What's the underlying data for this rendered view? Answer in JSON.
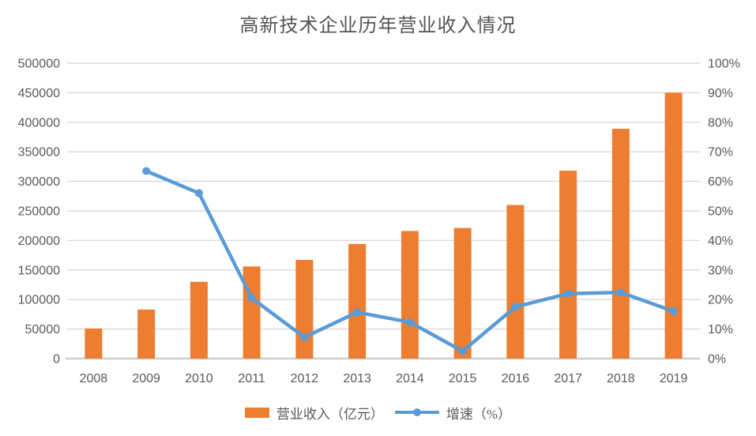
{
  "page": {
    "title": "高新技术企业历年营业收入情况"
  },
  "colors": {
    "bar": "#ED7D31",
    "line": "#5B9BD5",
    "grid": "#D9D9D9",
    "axis_line": "#D0CECE",
    "tick_text": "#595959",
    "title_text": "#555555",
    "background": "#FFFFFF"
  },
  "chart_data": {
    "type": "bar+line combo",
    "title": "高新技术企业历年营业收入情况",
    "categories": [
      "2008",
      "2009",
      "2010",
      "2011",
      "2012",
      "2013",
      "2014",
      "2015",
      "2016",
      "2017",
      "2018",
      "2019"
    ],
    "series": [
      {
        "name": "营业收入（亿元）",
        "type": "bar",
        "axis": "left",
        "values": [
          51000,
          83000,
          130000,
          156000,
          167000,
          194000,
          216000,
          221000,
          260000,
          318000,
          389000,
          450000
        ]
      },
      {
        "name": "增速（%）",
        "type": "line",
        "axis": "right",
        "values": [
          null,
          63.5,
          56,
          20.5,
          7.2,
          15.7,
          12.3,
          2.5,
          17.5,
          22,
          22.4,
          16
        ]
      }
    ],
    "left_axis": {
      "min": 0,
      "max": 500000,
      "step": 50000,
      "tick_labels": [
        "0",
        "50000",
        "100000",
        "150000",
        "200000",
        "250000",
        "300000",
        "350000",
        "400000",
        "450000",
        "500000"
      ]
    },
    "right_axis": {
      "min": 0,
      "max": 100,
      "step": 10,
      "tick_labels": [
        "0%",
        "10%",
        "20%",
        "30%",
        "40%",
        "50%",
        "60%",
        "70%",
        "80%",
        "90%",
        "100%"
      ]
    },
    "grid": true,
    "legend_position": "bottom"
  }
}
